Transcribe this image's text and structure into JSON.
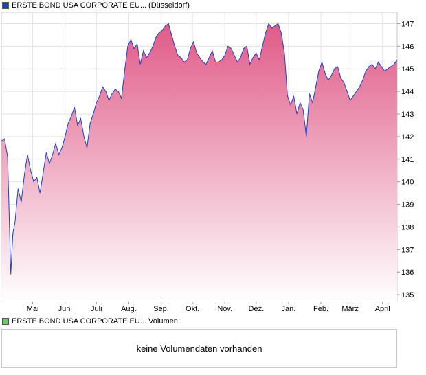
{
  "legend": {
    "price_label": "ERSTE BOND USA CORPORATE EU... (Düsseldorf)",
    "price_color": "#1f3fbf",
    "volume_label": "ERSTE BOND USA CORPORATE EU... Volumen",
    "volume_color": "#66cc66"
  },
  "volume_panel": {
    "message": "keine Volumendaten vorhanden"
  },
  "chart_data": {
    "type": "area",
    "title": "ERSTE BOND USA CORPORATE EU... (Düsseldorf)",
    "xlabel": "",
    "ylabel": "",
    "ylim": [
      134.7,
      147.5
    ],
    "y_ticks": [
      135,
      136,
      137,
      138,
      139,
      140,
      141,
      142,
      143,
      144,
      145,
      146,
      147
    ],
    "x_tick_labels": [
      "Mai",
      "Juni",
      "Juli",
      "Aug.",
      "Sep.",
      "Okt.",
      "Nov.",
      "Dez.",
      "Jan.",
      "Feb.",
      "März",
      "April"
    ],
    "x_tick_days": [
      30,
      61,
      91,
      122,
      153,
      183,
      214,
      244,
      275,
      306,
      334,
      365
    ],
    "grid": true,
    "line_color": "#1f3fbf",
    "fill_top_color": "#e05a88",
    "fill_bottom_color": "#ffffff",
    "series": [
      {
        "days": [
          0,
          3,
          6,
          9,
          11,
          13,
          16,
          19,
          22,
          25,
          28,
          31,
          34,
          37,
          40,
          43,
          46,
          49,
          52,
          55,
          58,
          61,
          64,
          67,
          70,
          73,
          76,
          79,
          82,
          85,
          88,
          91,
          94,
          97,
          100,
          103,
          106,
          109,
          112,
          115,
          118,
          121,
          124,
          127,
          130,
          133,
          136,
          139,
          142,
          145,
          148,
          151,
          154,
          157,
          160,
          163,
          166,
          169,
          172,
          175,
          178,
          181,
          184,
          187,
          190,
          193,
          196,
          199,
          202,
          205,
          208,
          211,
          214,
          217,
          220,
          223,
          226,
          229,
          232,
          235,
          238,
          241,
          244,
          247,
          250,
          253,
          256,
          259,
          262,
          265,
          268,
          271,
          274,
          277,
          280,
          283,
          286,
          289,
          292,
          295,
          298,
          301,
          304,
          307,
          310,
          313,
          316,
          319,
          322,
          325,
          328,
          331,
          334,
          337,
          340,
          343,
          346,
          349,
          352,
          355,
          358,
          361,
          364,
          367,
          370,
          373,
          376,
          379
        ],
        "values": [
          141.8,
          141.9,
          141.1,
          135.9,
          137.7,
          138.2,
          139.7,
          139.1,
          140.3,
          141.2,
          140.5,
          140.0,
          140.2,
          139.5,
          140.4,
          141.3,
          140.8,
          141.2,
          141.7,
          141.2,
          141.5,
          142.0,
          142.6,
          142.9,
          143.3,
          142.5,
          142.8,
          142.0,
          141.5,
          142.6,
          143.0,
          143.5,
          143.8,
          144.2,
          144.0,
          143.6,
          143.9,
          144.1,
          144.0,
          143.7,
          144.9,
          146.0,
          146.3,
          145.9,
          146.1,
          145.2,
          145.8,
          145.5,
          145.7,
          146.0,
          146.4,
          146.6,
          146.7,
          146.9,
          147.0,
          146.5,
          146.0,
          145.6,
          145.5,
          145.3,
          145.4,
          145.9,
          146.2,
          145.7,
          145.5,
          145.3,
          145.2,
          145.5,
          145.8,
          145.3,
          145.3,
          145.4,
          145.6,
          146.0,
          145.9,
          145.6,
          145.3,
          145.5,
          145.9,
          146.0,
          145.2,
          145.5,
          145.7,
          145.4,
          146.0,
          146.6,
          147.0,
          146.8,
          146.9,
          147.0,
          146.6,
          145.7,
          143.8,
          143.4,
          143.8,
          143.0,
          143.5,
          143.2,
          142.0,
          143.9,
          143.5,
          144.2,
          144.9,
          145.3,
          144.8,
          144.5,
          144.7,
          145.0,
          145.1,
          144.6,
          144.4,
          144.0,
          143.6,
          143.8,
          144.0,
          144.2,
          144.5,
          144.9,
          145.1,
          145.2,
          145.0,
          145.3,
          145.1,
          144.9,
          145.0,
          145.1,
          145.2,
          145.4
        ]
      }
    ]
  }
}
